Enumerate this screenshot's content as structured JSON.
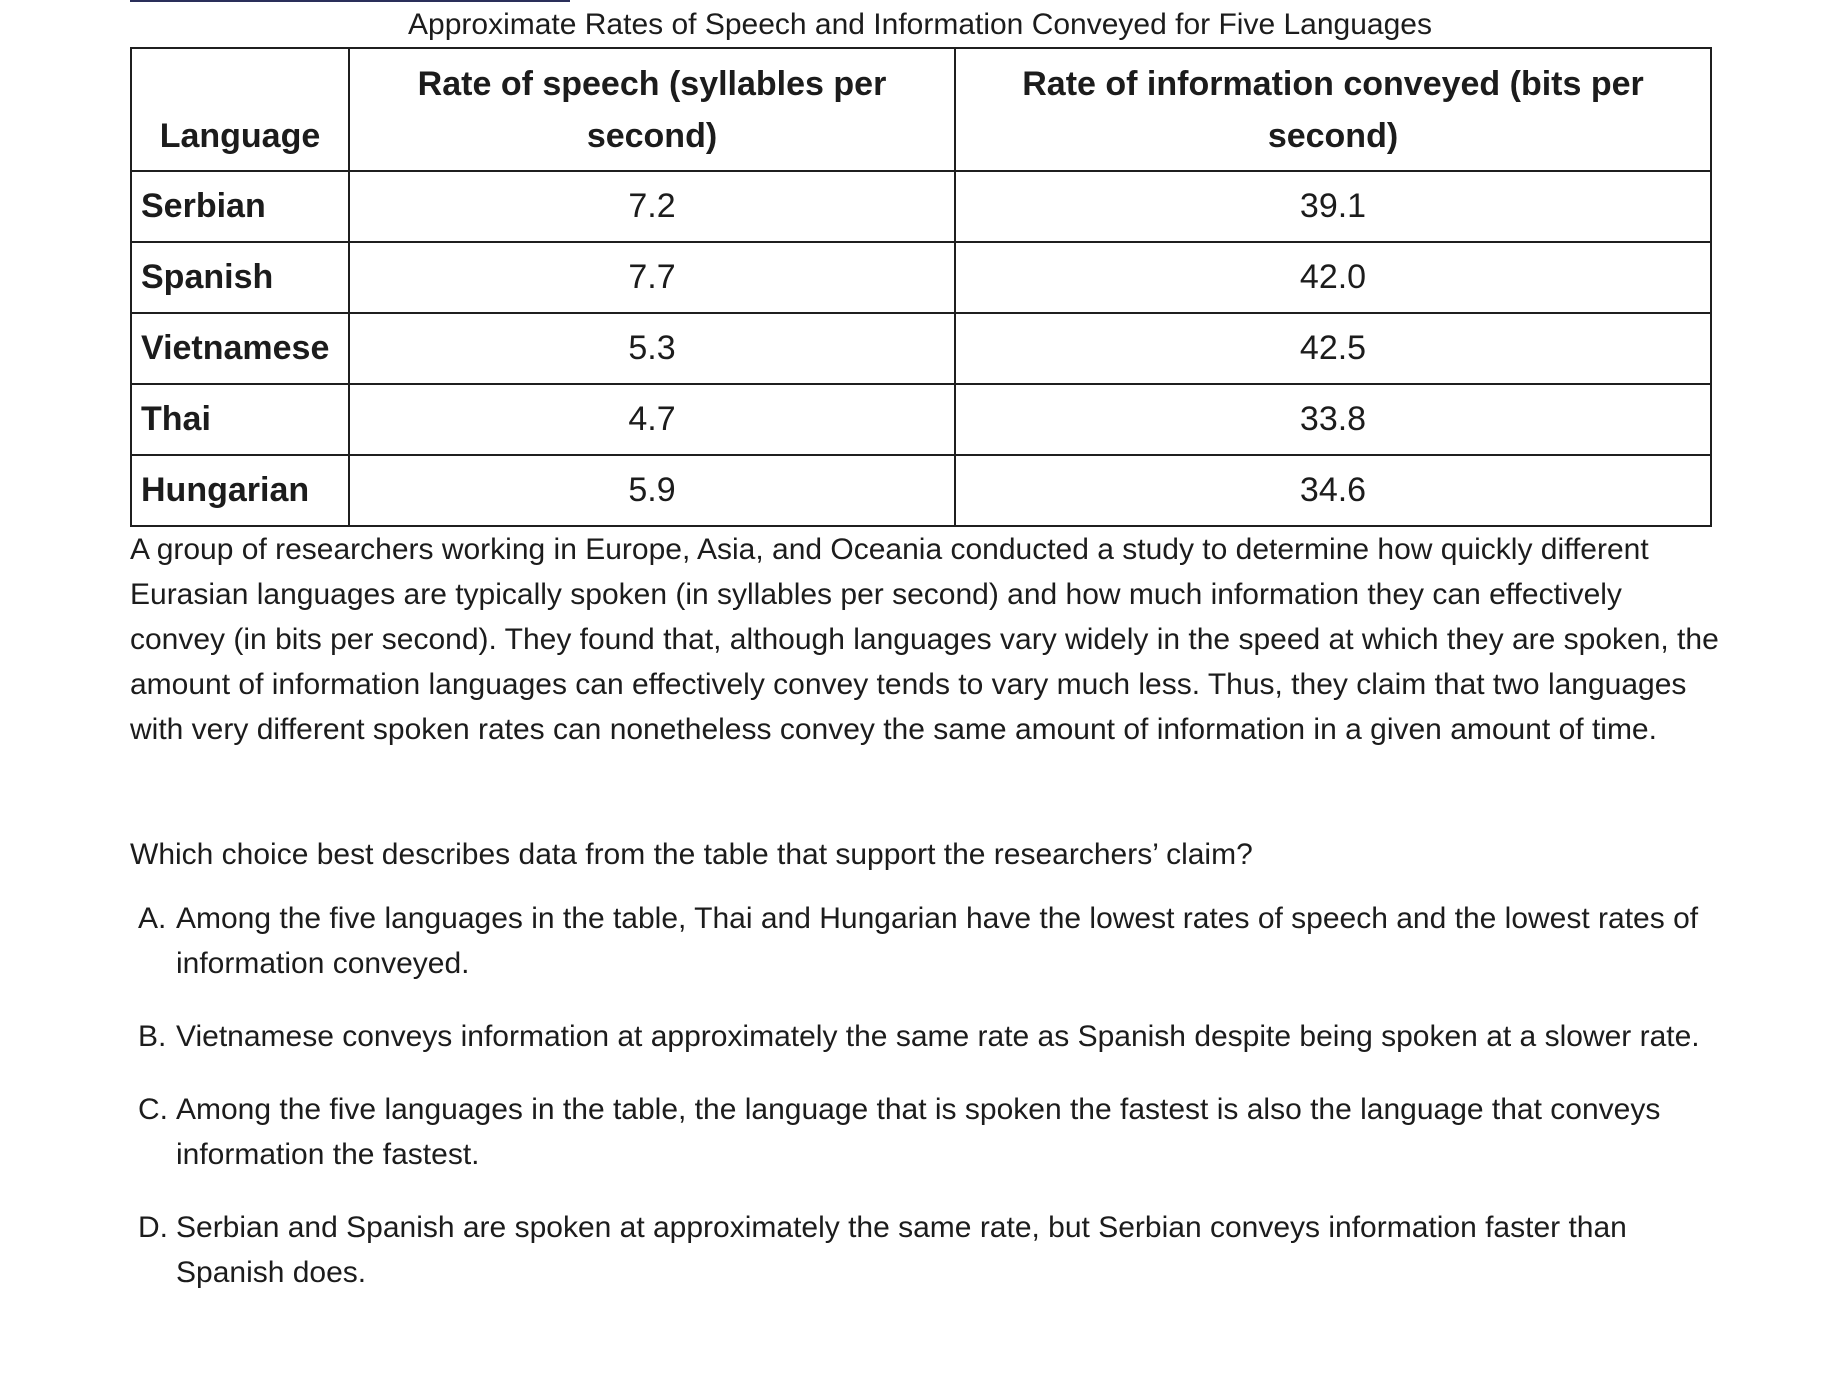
{
  "table": {
    "caption": "Approximate Rates of Speech and Information Conveyed for Five Languages",
    "headers": [
      "Language",
      "Rate of speech (syllables per second)",
      "Rate of information conveyed (bits per second)"
    ],
    "rows": [
      [
        "Serbian",
        "7.2",
        "39.1"
      ],
      [
        "Spanish",
        "7.7",
        "42.0"
      ],
      [
        "Vietnamese",
        "5.3",
        "42.5"
      ],
      [
        "Thai",
        "4.7",
        "33.8"
      ],
      [
        "Hungarian",
        "5.9",
        "34.6"
      ]
    ]
  },
  "passage": "A group of researchers working in Europe, Asia, and Oceania conducted a study to determine how quickly different Eurasian languages are typically spoken (in syllables per second) and how much information they can effectively convey (in bits per second). They found that, although languages vary widely in the speed at which they are spoken, the amount of information languages can effectively convey tends to vary much less. Thus, they claim that two languages with very different spoken rates can nonetheless convey the same amount of information in a given amount of time.",
  "question": "Which choice best describes data from the table that support the researchers’ claim?",
  "choices": [
    {
      "letter": "A.",
      "text": "Among the five languages in the table, Thai and Hungarian have the lowest rates of speech and the lowest rates of information conveyed."
    },
    {
      "letter": "B.",
      "text": "Vietnamese conveys information at approximately the same rate as Spanish despite being spoken at a slower rate."
    },
    {
      "letter": "C.",
      "text": "Among the five languages in the table, the language that is spoken the fastest is also the language that conveys information the fastest."
    },
    {
      "letter": "D.",
      "text": "Serbian and Spanish are spoken at approximately the same rate, but Serbian conveys information faster than Spanish does."
    }
  ]
}
